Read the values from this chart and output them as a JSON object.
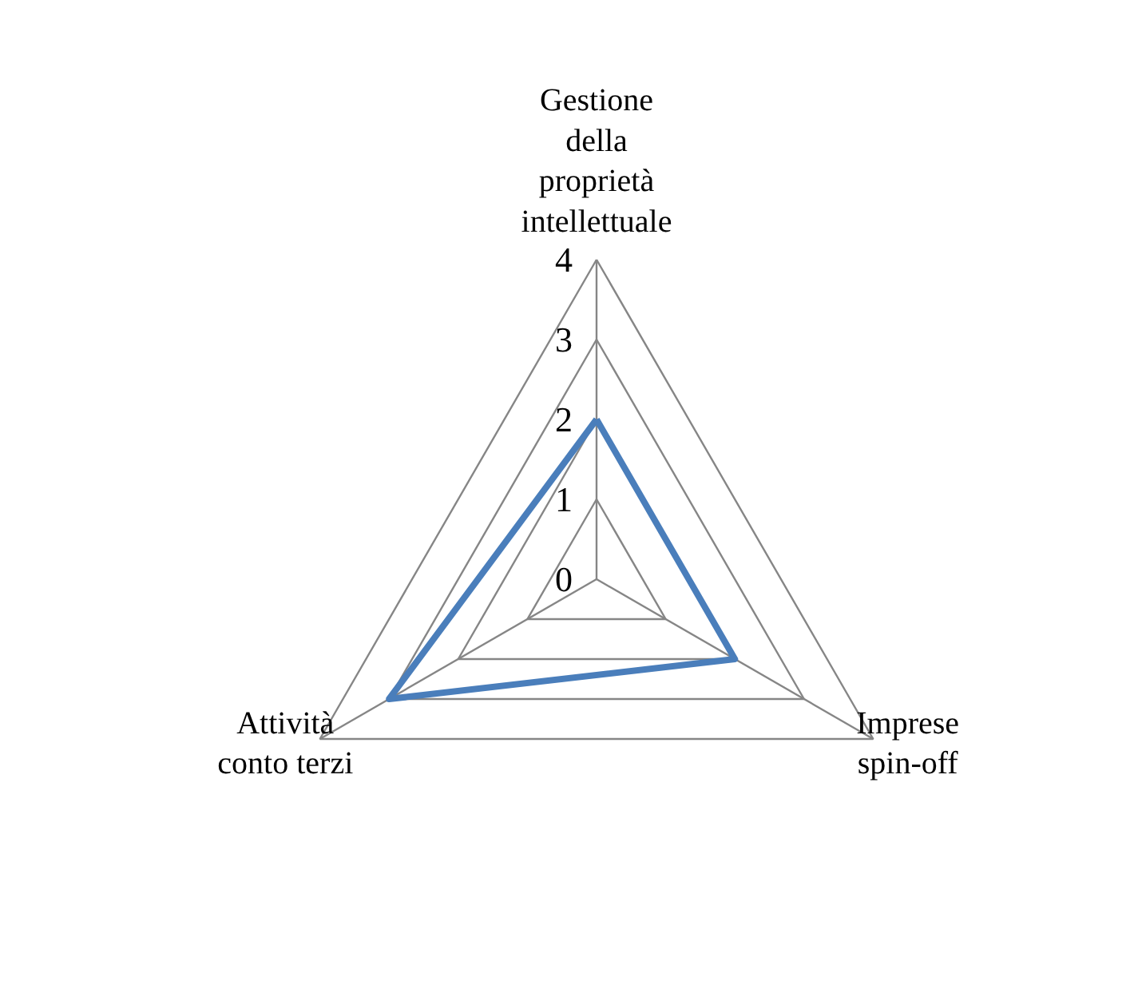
{
  "chart_data": {
    "type": "radar",
    "categories": [
      "Gestione della proprietà intellettuale",
      "Imprese spin-off",
      "Attività conto terzi"
    ],
    "series": [
      {
        "color": "#4a7ebb",
        "values": [
          2,
          2,
          3
        ]
      }
    ],
    "ylim": [
      0,
      4
    ],
    "yticks": [
      0,
      1,
      2,
      3,
      4
    ],
    "grid": true
  }
}
